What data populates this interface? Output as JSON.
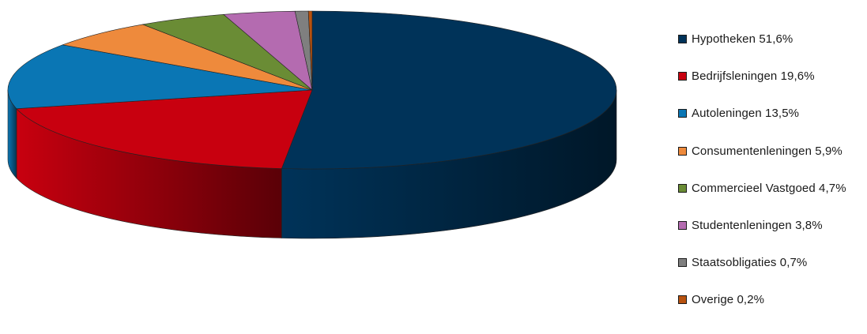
{
  "chart_data": {
    "type": "pie",
    "title": "",
    "legend_position": "right",
    "slices": [
      {
        "label": "Hypotheken 51,6%",
        "value": 51.6,
        "color": "#003359"
      },
      {
        "label": "Bedrijfsleningen 19,6%",
        "value": 19.6,
        "color": "#c8000f"
      },
      {
        "label": "Autoleningen 13,5%",
        "value": 13.5,
        "color": "#0a76b4"
      },
      {
        "label": "Consumentenleningen 5,9%",
        "value": 5.9,
        "color": "#ee8a3c"
      },
      {
        "label": "Commercieel Vastgoed 4,7%",
        "value": 4.7,
        "color": "#6a8c35"
      },
      {
        "label": "Studentenleningen 3,8%",
        "value": 3.8,
        "color": "#b46bb0"
      },
      {
        "label": "Staatsobligaties 0,7%",
        "value": 0.7,
        "color": "#7f7f7f"
      },
      {
        "label": "Overige 0,2%",
        "value": 0.2,
        "color": "#b8520f"
      }
    ]
  }
}
